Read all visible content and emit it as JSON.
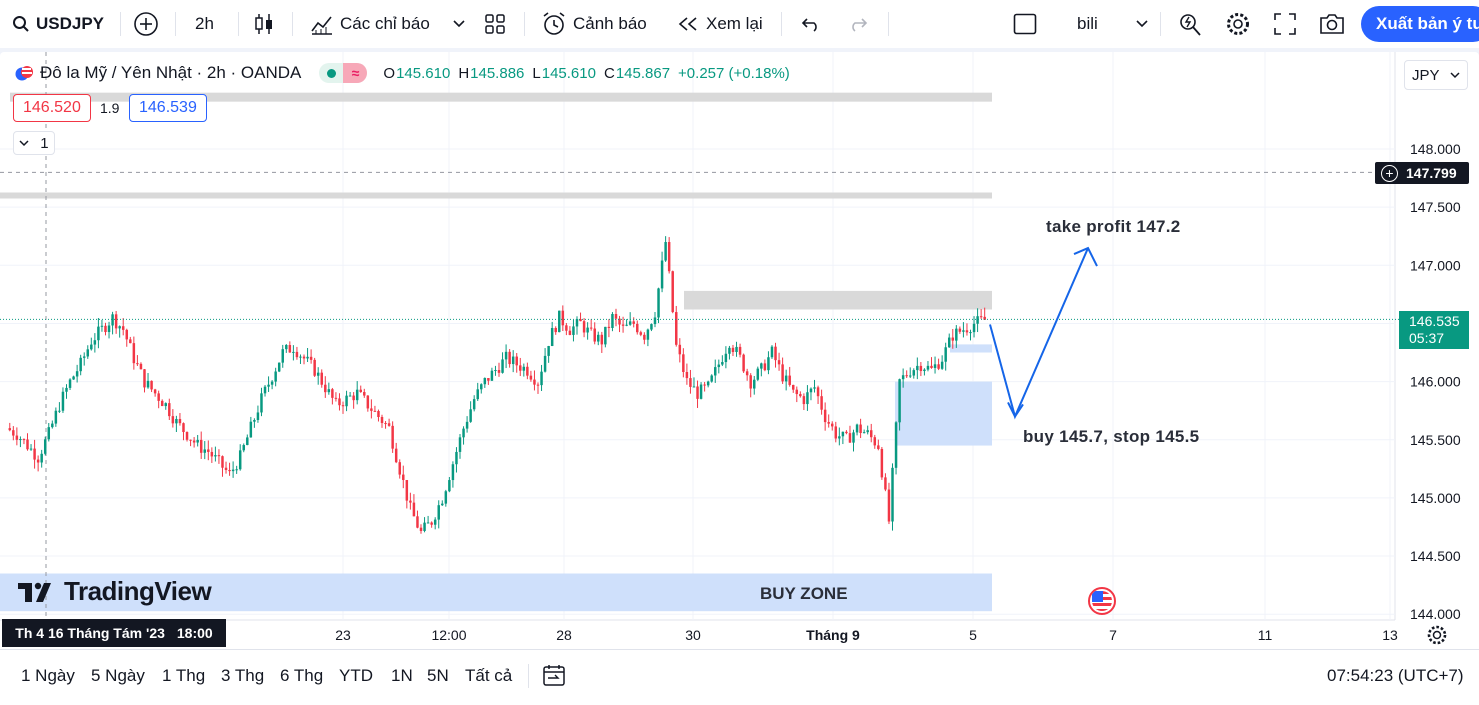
{
  "toolbar": {
    "symbol": "USDJPY",
    "interval": "2h",
    "indicators_label": "Các chỉ báo",
    "alert_label": "Cảnh báo",
    "replay_label": "Xem lại",
    "layout_name": "bili",
    "publish_label": "Xuất bản ý tưởng",
    "icons": [
      "search-icon",
      "add-symbol-icon",
      "candles-icon",
      "indicators-icon",
      "chevron-down-icon",
      "templates-icon",
      "alert-icon",
      "replay-icon",
      "undo-icon",
      "redo-icon",
      "layout-icon",
      "chevron-down-icon",
      "quick-search-icon",
      "settings-icon",
      "fullscreen-icon",
      "snapshot-icon"
    ]
  },
  "legend": {
    "title": "Đô la Mỹ / Yên Nhật · 2h · OANDA",
    "open_label": "O",
    "open": "145.610",
    "high_label": "H",
    "high": "145.886",
    "low_label": "L",
    "low": "145.610",
    "close_label": "C",
    "close": "145.867",
    "change": "+0.257 (+0.18%)"
  },
  "trade": {
    "sell_price": "146.520",
    "spread": "1.9",
    "buy_price": "146.539",
    "quantity": "1"
  },
  "currency": "JPY",
  "crosshair": {
    "date": "Th 4 16 Tháng Tám '23",
    "time": "18:00",
    "price": "147.799"
  },
  "last_price": {
    "value": "146.535",
    "countdown": "05:37"
  },
  "annotations": {
    "take_profit": "take profit 147.2",
    "entry": "buy 145.7, stop 145.5",
    "buy_zone": "BUY ZONE"
  },
  "logo": "TradingView",
  "bottom": {
    "ranges": [
      "1 Ngày",
      "5 Ngày",
      "1 Thg",
      "3 Thg",
      "6 Thg",
      "YTD",
      "1N",
      "5N",
      "Tất cả"
    ],
    "clock": "07:54:23 (UTC+7)"
  },
  "colors": {
    "up": "#089981",
    "down": "#f23645",
    "accent": "#2962ff",
    "zone": "#cfe0fb"
  },
  "chart_data": {
    "type": "candlestick",
    "symbol": "USDJPY",
    "interval": "2h",
    "price_range": [
      144.0,
      148.5
    ],
    "y_ticks": [
      "148.000",
      "147.500",
      "147.000",
      "146.500",
      "146.000",
      "145.500",
      "145.000",
      "144.500",
      "144.000"
    ],
    "x_ticks": [
      "23",
      "12:00",
      "28",
      "30",
      "Tháng 9",
      "5",
      "7",
      "11",
      "13"
    ],
    "grid": true,
    "close_path": [
      145.6,
      145.55,
      145.45,
      145.35,
      145.55,
      145.8,
      146.0,
      146.15,
      146.35,
      146.45,
      146.55,
      146.45,
      146.2,
      146.0,
      145.9,
      145.8,
      145.65,
      145.55,
      145.45,
      145.4,
      145.3,
      145.2,
      145.35,
      145.6,
      145.85,
      146.05,
      146.25,
      146.3,
      146.2,
      146.1,
      145.95,
      145.8,
      145.85,
      145.9,
      145.8,
      145.7,
      145.6,
      145.25,
      144.9,
      144.7,
      144.8,
      145.0,
      145.3,
      145.6,
      145.85,
      146.0,
      146.1,
      146.2,
      146.15,
      146.1,
      146.0,
      146.35,
      146.55,
      146.45,
      146.5,
      146.4,
      146.35,
      146.55,
      146.45,
      146.5,
      146.4,
      146.6,
      147.2,
      146.3,
      146.0,
      145.9,
      145.95,
      146.15,
      146.35,
      146.2,
      146.0,
      146.1,
      146.25,
      146.05,
      145.9,
      145.85,
      145.95,
      145.7,
      145.55,
      145.5,
      145.6,
      145.55,
      145.45,
      144.8,
      146.0,
      146.1,
      146.15,
      146.1,
      146.2,
      146.4,
      146.45,
      146.5,
      146.53
    ],
    "last_close": 146.535,
    "horizontal_levels": [
      148.45,
      147.6
    ],
    "zones": [
      {
        "label": "BUY ZONE",
        "from": 144.0,
        "to": 144.35
      },
      {
        "label": "",
        "from": 145.45,
        "to": 146.0
      },
      {
        "label": "",
        "from": 146.25,
        "to": 146.32
      },
      {
        "label": "",
        "from": 146.62,
        "to": 146.78
      }
    ],
    "projection": [
      146.5,
      145.7,
      147.2
    ]
  }
}
